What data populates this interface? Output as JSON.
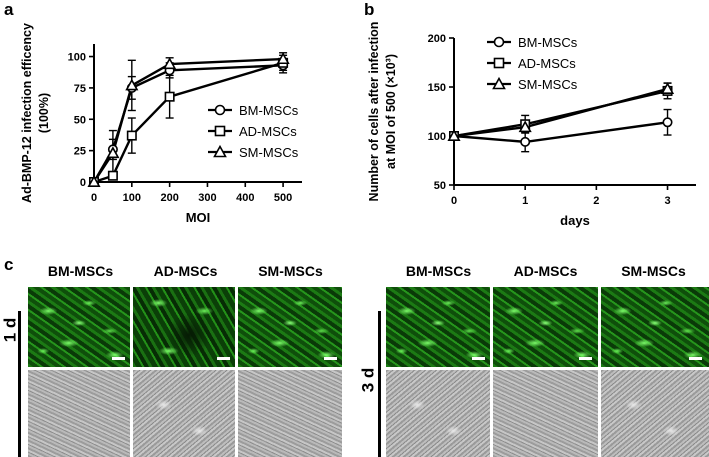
{
  "panels": {
    "a": "a",
    "b": "b",
    "c": "c"
  },
  "chart_data": [
    {
      "type": "line",
      "panel": "a",
      "xlabel": "MOI",
      "ylabel_lines": [
        "Ad-BMP-12 infection efficency",
        "(100%)"
      ],
      "xlim": [
        0,
        550
      ],
      "ylim": [
        0,
        110
      ],
      "xticks": [
        "0",
        "100",
        "200",
        "300",
        "400",
        "500"
      ],
      "yticks": [
        "0",
        "25",
        "50",
        "75",
        "100"
      ],
      "legend_position": "center-right",
      "x": [
        0,
        50,
        100,
        200,
        500
      ],
      "series": [
        {
          "name": "BM-MSCs",
          "marker": "circle",
          "values": [
            0,
            26,
            75,
            89,
            93
          ],
          "errors": [
            0,
            8,
            9,
            6,
            4
          ]
        },
        {
          "name": "AD-MSCs",
          "marker": "square",
          "values": [
            0,
            5,
            37,
            68,
            95
          ],
          "errors": [
            0,
            3,
            14,
            17,
            8
          ]
        },
        {
          "name": "SM-MSCs",
          "marker": "triangle",
          "values": [
            0,
            23,
            77,
            94,
            98
          ],
          "errors": [
            0,
            18,
            20,
            5,
            3
          ]
        }
      ]
    },
    {
      "type": "line",
      "panel": "b",
      "xlabel": "days",
      "ylabel_lines": [
        "Number of cells after infection",
        "at MOI of 500 (×10³)"
      ],
      "xlim": [
        0,
        3.4
      ],
      "ylim": [
        50,
        200
      ],
      "xticks": [
        "0",
        "1",
        "2",
        "3"
      ],
      "yticks": [
        "50",
        "100",
        "150",
        "200"
      ],
      "legend_position": "top-left",
      "x": [
        0,
        1,
        3
      ],
      "series": [
        {
          "name": "BM-MSCs",
          "marker": "circle",
          "values": [
            100,
            94,
            114
          ],
          "errors": [
            0,
            10,
            13
          ]
        },
        {
          "name": "AD-MSCs",
          "marker": "square",
          "values": [
            100,
            112,
            146
          ],
          "errors": [
            0,
            9,
            8
          ]
        },
        {
          "name": "SM-MSCs",
          "marker": "triangle",
          "values": [
            100,
            109,
            148
          ],
          "errors": [
            0,
            4,
            6
          ]
        }
      ]
    }
  ],
  "micrographs": {
    "groups": [
      {
        "day_label": "1 d",
        "columns": [
          "BM-MSCs",
          "AD-MSCs",
          "SM-MSCs"
        ]
      },
      {
        "day_label": "3 d",
        "columns": [
          "BM-MSCs",
          "AD-MSCs",
          "SM-MSCs"
        ]
      }
    ]
  }
}
